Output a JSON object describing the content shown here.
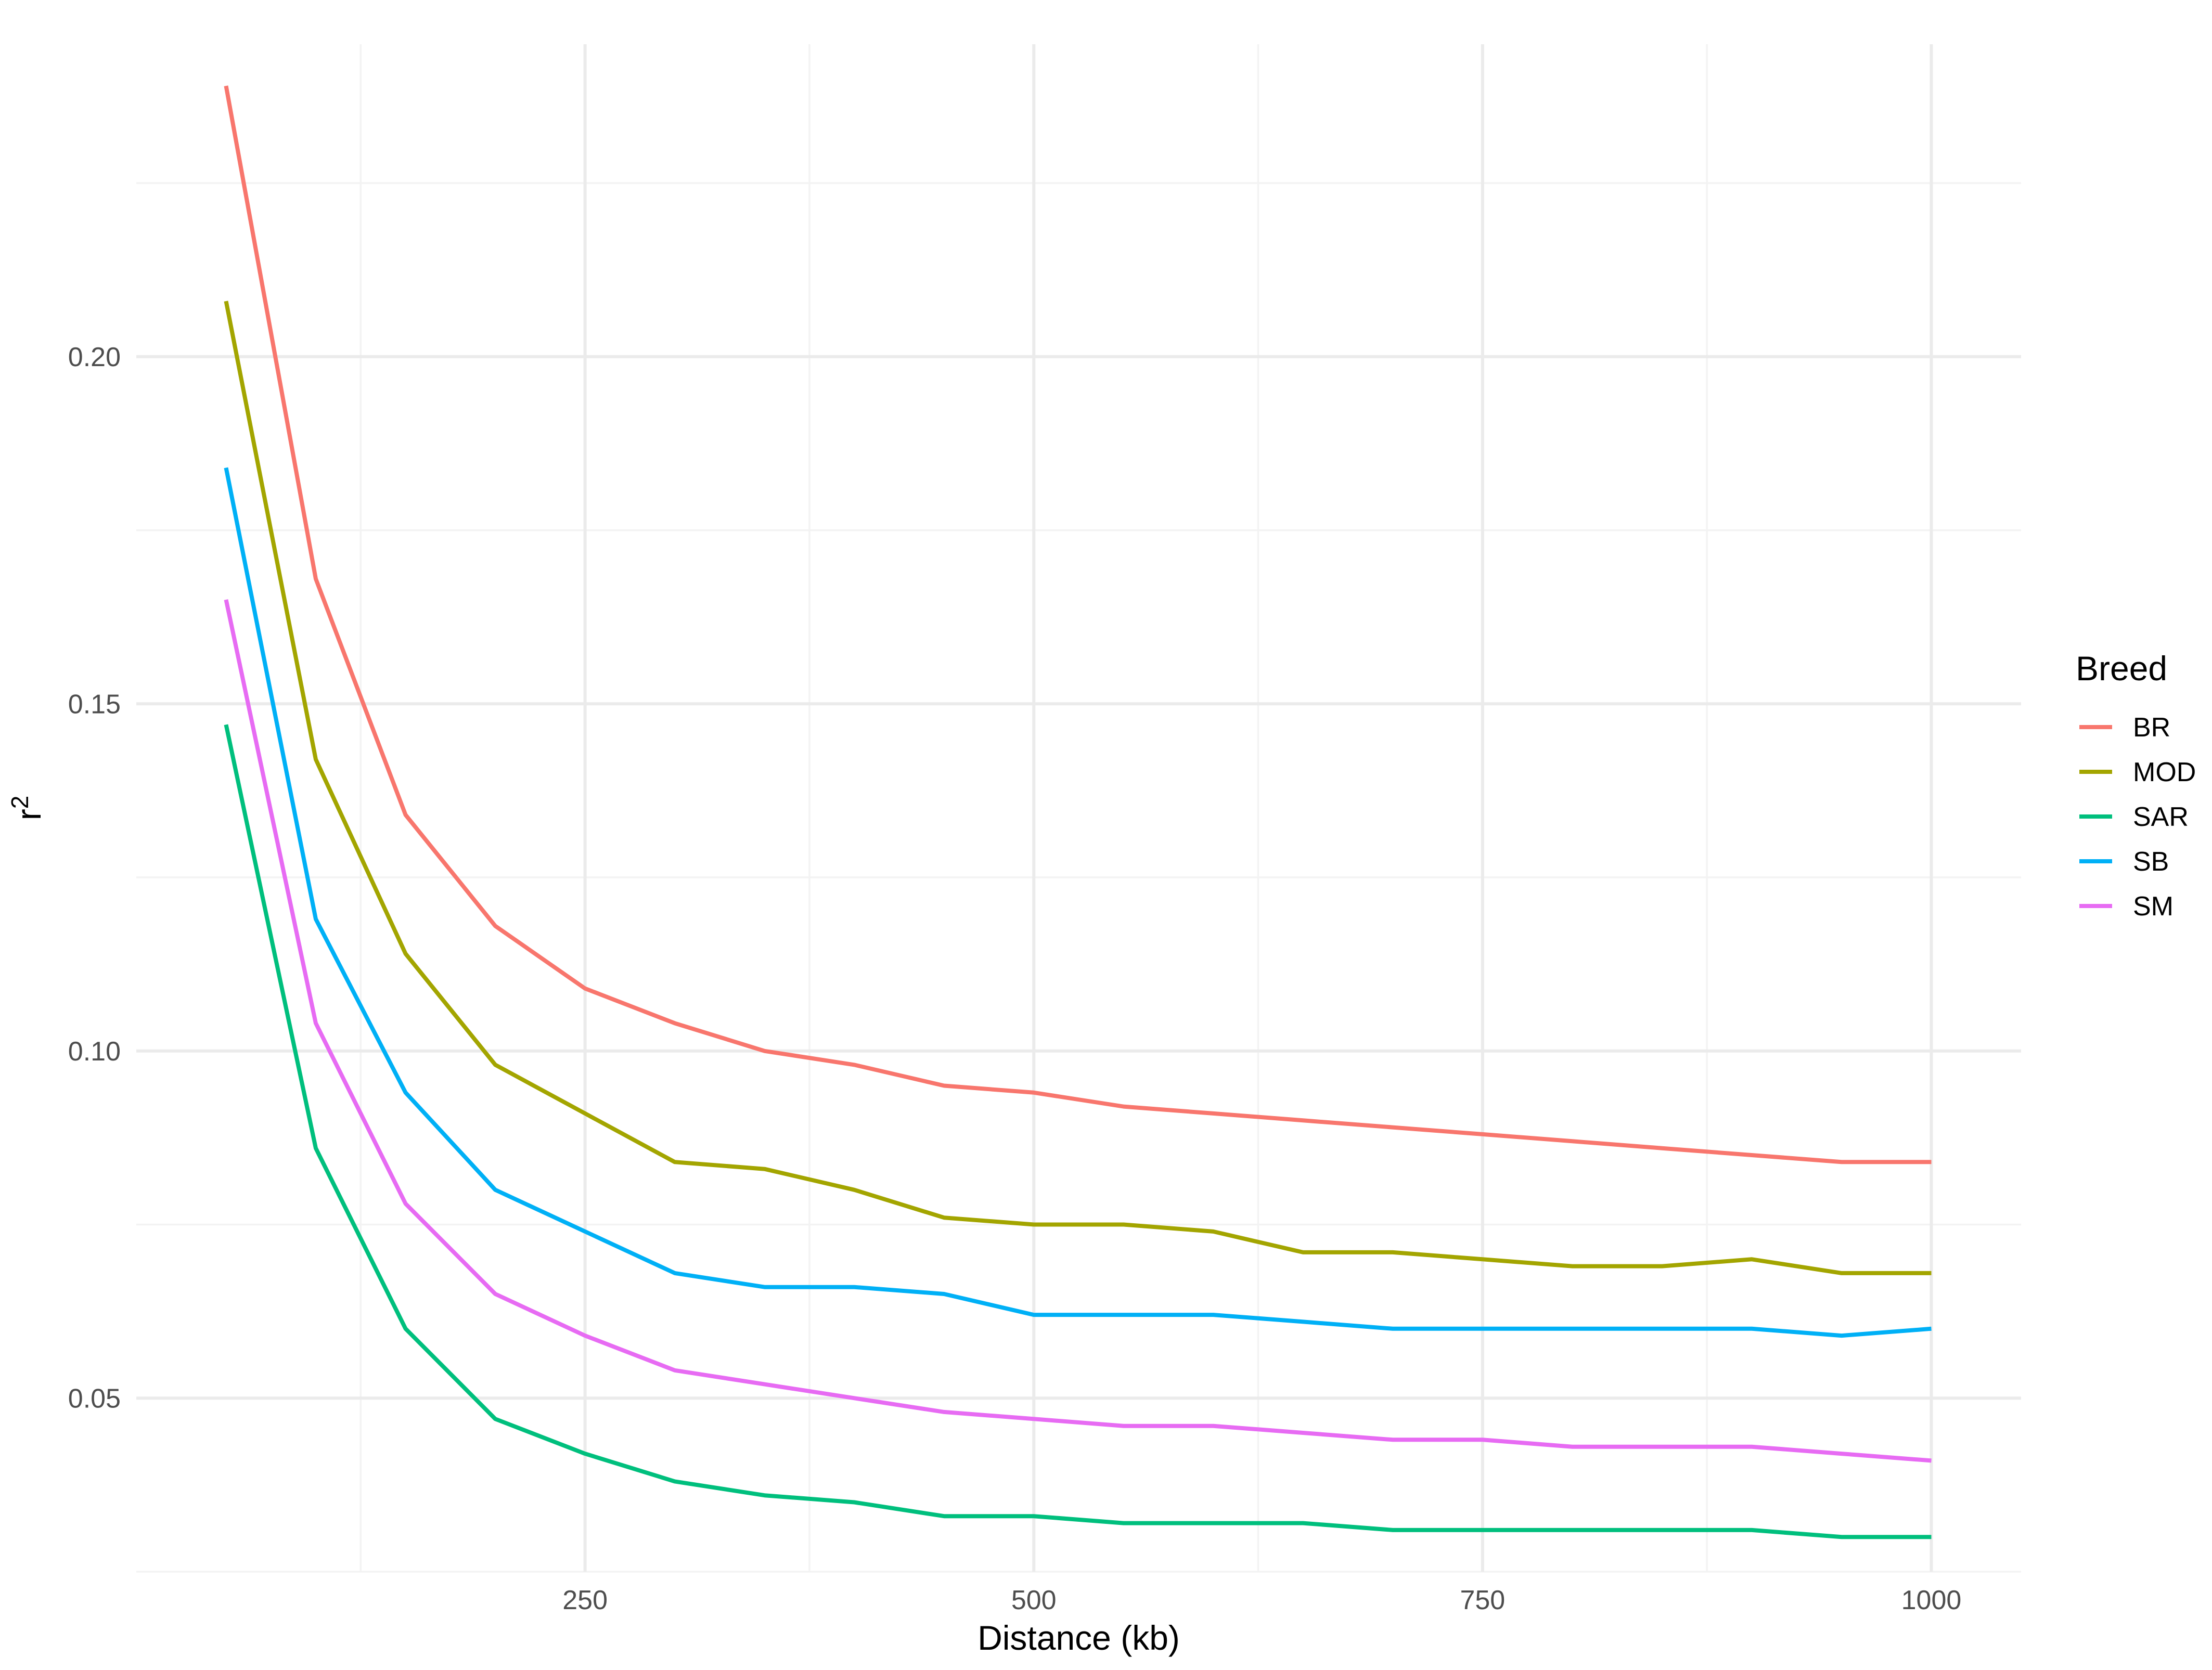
{
  "chart_data": {
    "type": "line",
    "title": "",
    "xlabel": "Distance (kb)",
    "ylabel": "r",
    "ylabel_superscript": "2",
    "x": [
      50,
      100,
      150,
      200,
      250,
      300,
      350,
      400,
      450,
      500,
      550,
      600,
      650,
      700,
      750,
      800,
      850,
      900,
      950,
      1000
    ],
    "xlim": [
      0,
      1050
    ],
    "ylim": [
      0.025,
      0.245
    ],
    "x_ticks": [
      250,
      500,
      750,
      1000
    ],
    "x_tick_labels": [
      "250",
      "500",
      "750",
      "1000"
    ],
    "y_ticks": [
      0.05,
      0.1,
      0.15,
      0.2
    ],
    "y_tick_labels": [
      "0.05",
      "0.10",
      "0.15",
      "0.20"
    ],
    "grid": true,
    "legend": {
      "title": "Breed",
      "position": "right"
    },
    "series": [
      {
        "name": "BR",
        "color": "#F8766D",
        "values": [
          0.239,
          0.168,
          0.134,
          0.118,
          0.109,
          0.104,
          0.1,
          0.098,
          0.095,
          0.094,
          0.092,
          0.091,
          0.09,
          0.089,
          0.088,
          0.087,
          0.086,
          0.085,
          0.084,
          0.084
        ]
      },
      {
        "name": "MOD",
        "color": "#A3A500",
        "values": [
          0.208,
          0.142,
          0.114,
          0.098,
          0.091,
          0.084,
          0.083,
          0.08,
          0.076,
          0.075,
          0.075,
          0.074,
          0.071,
          0.071,
          0.07,
          0.069,
          0.069,
          0.07,
          0.068,
          0.068
        ]
      },
      {
        "name": "SAR",
        "color": "#00BF7D",
        "values": [
          0.147,
          0.086,
          0.06,
          0.047,
          0.042,
          0.038,
          0.036,
          0.035,
          0.033,
          0.033,
          0.032,
          0.032,
          0.032,
          0.031,
          0.031,
          0.031,
          0.031,
          0.031,
          0.03,
          0.03
        ]
      },
      {
        "name": "SB",
        "color": "#00B0F6",
        "values": [
          0.184,
          0.119,
          0.094,
          0.08,
          0.074,
          0.068,
          0.066,
          0.066,
          0.065,
          0.062,
          0.062,
          0.062,
          0.061,
          0.06,
          0.06,
          0.06,
          0.06,
          0.06,
          0.059,
          0.06
        ]
      },
      {
        "name": "SM",
        "color": "#E76BF3",
        "values": [
          0.165,
          0.104,
          0.078,
          0.065,
          0.059,
          0.054,
          0.052,
          0.05,
          0.048,
          0.047,
          0.046,
          0.046,
          0.045,
          0.044,
          0.044,
          0.043,
          0.043,
          0.043,
          0.042,
          0.041
        ]
      }
    ]
  }
}
